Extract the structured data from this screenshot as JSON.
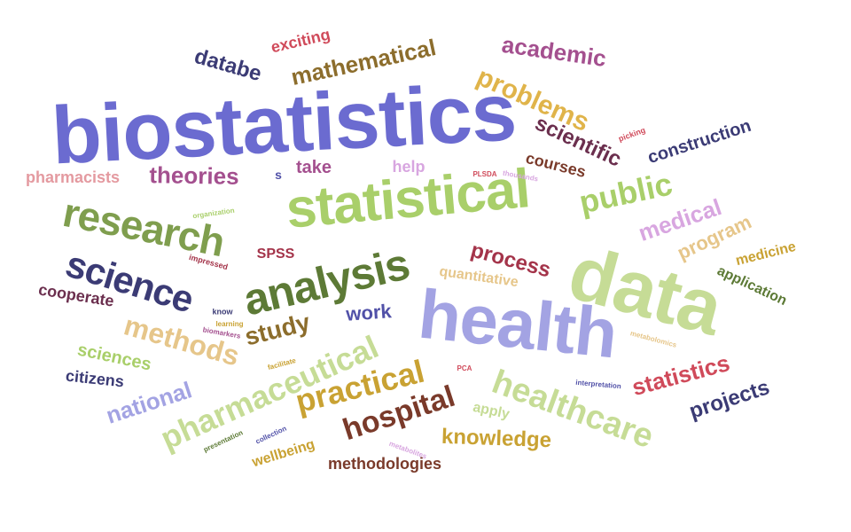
{
  "words": [
    {
      "text": "biostatistics",
      "color": "#6b6bd0"
    },
    {
      "text": "statistical",
      "color": "#a9cf6a"
    },
    {
      "text": "data",
      "color": "#c6dc96"
    },
    {
      "text": "health",
      "color": "#a3a3e3"
    },
    {
      "text": "analysis",
      "color": "#5d7a36"
    },
    {
      "text": "research",
      "color": "#7f9e4e"
    },
    {
      "text": "science",
      "color": "#3b3b75"
    },
    {
      "text": "healthcare",
      "color": "#c6dc96"
    },
    {
      "text": "pharmaceutical",
      "color": "#c6dc96"
    },
    {
      "text": "practical",
      "color": "#c9a233"
    },
    {
      "text": "hospital",
      "color": "#7a3a2a"
    },
    {
      "text": "public",
      "color": "#a9cf6a"
    },
    {
      "text": "problems",
      "color": "#e0b44a"
    },
    {
      "text": "mathematical",
      "color": "#8c6d2c"
    },
    {
      "text": "academic",
      "color": "#a4508f"
    },
    {
      "text": "scientific",
      "color": "#6b2f4e"
    },
    {
      "text": "medical",
      "color": "#d8a6e0"
    },
    {
      "text": "program",
      "color": "#e6c68a"
    },
    {
      "text": "methods",
      "color": "#e6c68a"
    },
    {
      "text": "study",
      "color": "#8c6d2c"
    },
    {
      "text": "work",
      "color": "#5151a8"
    },
    {
      "text": "process",
      "color": "#a4344a"
    },
    {
      "text": "knowledge",
      "color": "#c9a233"
    },
    {
      "text": "statistics",
      "color": "#d04a5a"
    },
    {
      "text": "projects",
      "color": "#3b3b75"
    },
    {
      "text": "national",
      "color": "#a3a3e3"
    },
    {
      "text": "theories",
      "color": "#a4508f"
    },
    {
      "text": "databe",
      "color": "#3b3b75"
    },
    {
      "text": "construction",
      "color": "#3b3b75"
    },
    {
      "text": "exciting",
      "color": "#d04a5a"
    },
    {
      "text": "courses",
      "color": "#7a3a2a"
    },
    {
      "text": "pharmacists",
      "color": "#e49aa0"
    },
    {
      "text": "take",
      "color": "#a4508f"
    },
    {
      "text": "help",
      "color": "#d8a6e0"
    },
    {
      "text": "s",
      "color": "#5151a8"
    },
    {
      "text": "SPSS",
      "color": "#a4344a"
    },
    {
      "text": "cooperate",
      "color": "#6b2f4e"
    },
    {
      "text": "quantitative",
      "color": "#e6c68a"
    },
    {
      "text": "medicine",
      "color": "#c9a233"
    },
    {
      "text": "application",
      "color": "#5d7a36"
    },
    {
      "text": "sciences",
      "color": "#a9cf6a"
    },
    {
      "text": "citizens",
      "color": "#3b3b75"
    },
    {
      "text": "methodologies",
      "color": "#7a3a2a"
    },
    {
      "text": "wellbeing",
      "color": "#c9a233"
    },
    {
      "text": "apply",
      "color": "#c6dc96"
    },
    {
      "text": "picking",
      "color": "#d04a5a"
    },
    {
      "text": "PLSDA",
      "color": "#d04a5a"
    },
    {
      "text": "thousands",
      "color": "#d8a6e0"
    },
    {
      "text": "organization",
      "color": "#a9cf6a"
    },
    {
      "text": "impressed",
      "color": "#a4344a"
    },
    {
      "text": "know",
      "color": "#3b3b75"
    },
    {
      "text": "learning",
      "color": "#c9a233"
    },
    {
      "text": "biomarkers",
      "color": "#a4508f"
    },
    {
      "text": "facilitate",
      "color": "#c9a233"
    },
    {
      "text": "metabolomics",
      "color": "#e6c68a"
    },
    {
      "text": "interpretation",
      "color": "#5151a8"
    },
    {
      "text": "PCA",
      "color": "#d04a5a"
    },
    {
      "text": "collection",
      "color": "#5151a8"
    },
    {
      "text": "presentation",
      "color": "#5d7a36"
    },
    {
      "text": "metabolites",
      "color": "#d8a6e0"
    }
  ]
}
